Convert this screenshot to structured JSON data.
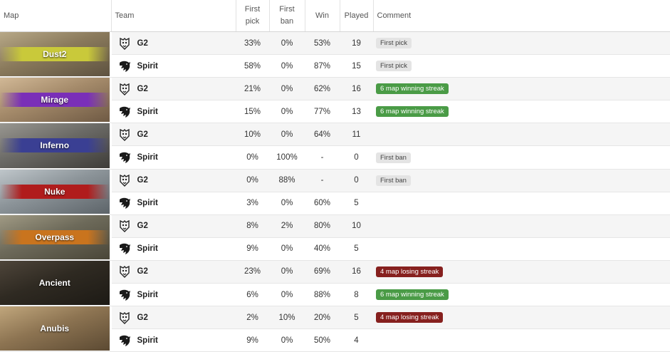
{
  "header": {
    "map": "Map",
    "team": "Team",
    "first_pick_1": "First",
    "first_pick_2": "pick",
    "first_ban_1": "First",
    "first_ban_2": "ban",
    "win": "Win",
    "played": "Played",
    "comment": "Comment"
  },
  "maps": [
    {
      "name": "Dust2",
      "band_color": "#c9c93a",
      "bg": [
        "#8a7a5c",
        "#b7a887",
        "#5e5240"
      ],
      "rows": [
        {
          "team": "G2",
          "logo": "g2-logo",
          "first_pick": "33%",
          "first_ban": "0%",
          "win": "53%",
          "played": "19",
          "comment": "First pick",
          "comment_style": "grey"
        },
        {
          "team": "Spirit",
          "logo": "spirit-logo",
          "first_pick": "58%",
          "first_ban": "0%",
          "win": "87%",
          "played": "15",
          "comment": "First pick",
          "comment_style": "grey"
        }
      ]
    },
    {
      "name": "Mirage",
      "band_color": "#7a2fb8",
      "bg": [
        "#a48a6a",
        "#d1b896",
        "#6f5a44"
      ],
      "rows": [
        {
          "team": "G2",
          "logo": "g2-logo",
          "first_pick": "21%",
          "first_ban": "0%",
          "win": "62%",
          "played": "16",
          "comment": "6 map winning streak",
          "comment_style": "green"
        },
        {
          "team": "Spirit",
          "logo": "spirit-logo",
          "first_pick": "15%",
          "first_ban": "0%",
          "win": "77%",
          "played": "13",
          "comment": "6 map winning streak",
          "comment_style": "green"
        }
      ]
    },
    {
      "name": "Inferno",
      "band_color": "#3a3f93",
      "bg": [
        "#6b6a66",
        "#999791",
        "#3e3c38"
      ],
      "rows": [
        {
          "team": "G2",
          "logo": "g2-logo",
          "first_pick": "10%",
          "first_ban": "0%",
          "win": "64%",
          "played": "11",
          "comment": "",
          "comment_style": ""
        },
        {
          "team": "Spirit",
          "logo": "spirit-logo",
          "first_pick": "0%",
          "first_ban": "100%",
          "win": "-",
          "played": "0",
          "comment": "First ban",
          "comment_style": "grey"
        }
      ]
    },
    {
      "name": "Nuke",
      "band_color": "#b01c1c",
      "bg": [
        "#8c9499",
        "#bfc6ca",
        "#5d6469"
      ],
      "rows": [
        {
          "team": "G2",
          "logo": "g2-logo",
          "first_pick": "0%",
          "first_ban": "88%",
          "win": "-",
          "played": "0",
          "comment": "First ban",
          "comment_style": "grey"
        },
        {
          "team": "Spirit",
          "logo": "spirit-logo",
          "first_pick": "3%",
          "first_ban": "0%",
          "win": "60%",
          "played": "5",
          "comment": "",
          "comment_style": ""
        }
      ]
    },
    {
      "name": "Overpass",
      "band_color": "#c9741e",
      "bg": [
        "#6d6a5a",
        "#a09a84",
        "#4a4638"
      ],
      "rows": [
        {
          "team": "G2",
          "logo": "g2-logo",
          "first_pick": "8%",
          "first_ban": "2%",
          "win": "80%",
          "played": "10",
          "comment": "",
          "comment_style": ""
        },
        {
          "team": "Spirit",
          "logo": "spirit-logo",
          "first_pick": "9%",
          "first_ban": "0%",
          "win": "40%",
          "played": "5",
          "comment": "",
          "comment_style": ""
        }
      ]
    },
    {
      "name": "Ancient",
      "band_color": "",
      "bg": [
        "#2f2a22",
        "#4e453a",
        "#1d1a15"
      ],
      "rows": [
        {
          "team": "G2",
          "logo": "g2-logo",
          "first_pick": "23%",
          "first_ban": "0%",
          "win": "69%",
          "played": "16",
          "comment": "4 map losing streak",
          "comment_style": "red"
        },
        {
          "team": "Spirit",
          "logo": "spirit-logo",
          "first_pick": "6%",
          "first_ban": "0%",
          "win": "88%",
          "played": "8",
          "comment": "6 map winning streak",
          "comment_style": "green"
        }
      ]
    },
    {
      "name": "Anubis",
      "band_color": "",
      "bg": [
        "#8d7452",
        "#c0a67c",
        "#5c4a33"
      ],
      "rows": [
        {
          "team": "G2",
          "logo": "g2-logo",
          "first_pick": "2%",
          "first_ban": "10%",
          "win": "20%",
          "played": "5",
          "comment": "4 map losing streak",
          "comment_style": "red"
        },
        {
          "team": "Spirit",
          "logo": "spirit-logo",
          "first_pick": "9%",
          "first_ban": "0%",
          "win": "50%",
          "played": "4",
          "comment": "",
          "comment_style": ""
        }
      ]
    }
  ]
}
